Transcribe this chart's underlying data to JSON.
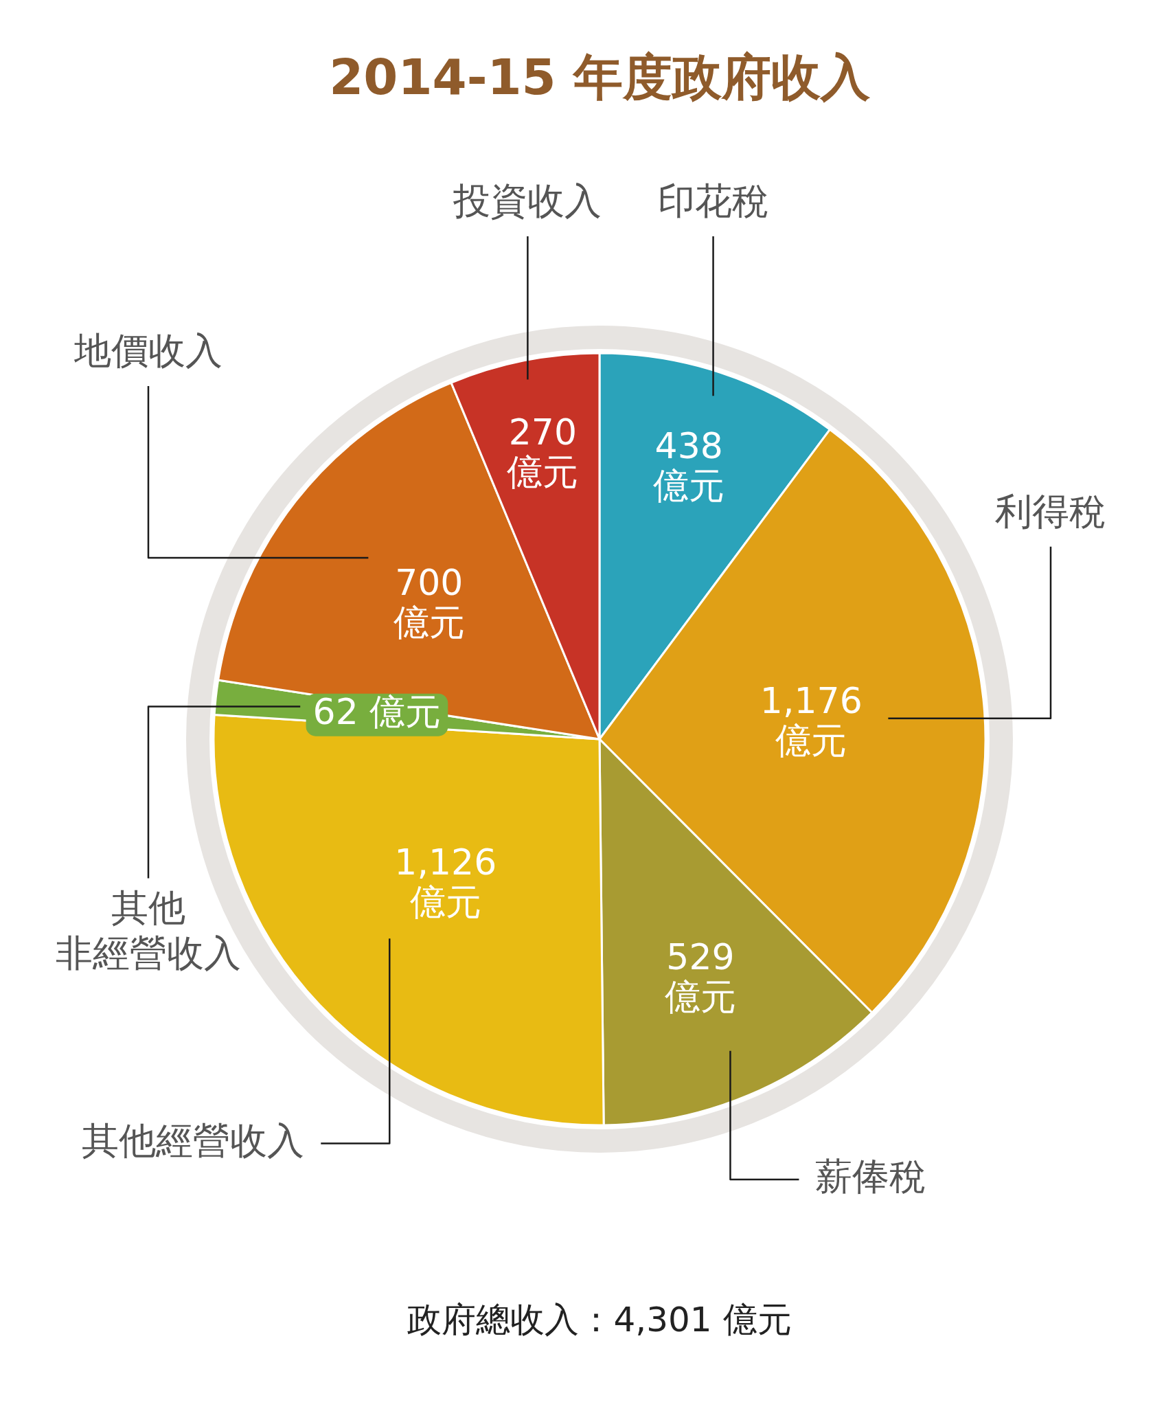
{
  "chart_data": {
    "type": "pie",
    "title": "2014-15 年度政府收入",
    "categories": [
      "印花稅",
      "利得稅",
      "薪俸稅",
      "其他經營收入",
      "其他非經營收入",
      "地價收入",
      "投資收入"
    ],
    "values": [
      438,
      1176,
      529,
      1126,
      62,
      700,
      270
    ],
    "colors": [
      "#2ba3ba",
      "#e0a016",
      "#a89b32",
      "#e8bb13",
      "#78ae3e",
      "#d26a18",
      "#c73326"
    ],
    "value_labels": [
      "438\n億元",
      "1,176\n億元",
      "529\n億元",
      "1,126\n億元",
      "62 億元",
      "700\n億元",
      "270\n億元"
    ],
    "annotations": [
      "政府總收入：4,301 億元"
    ]
  }
}
